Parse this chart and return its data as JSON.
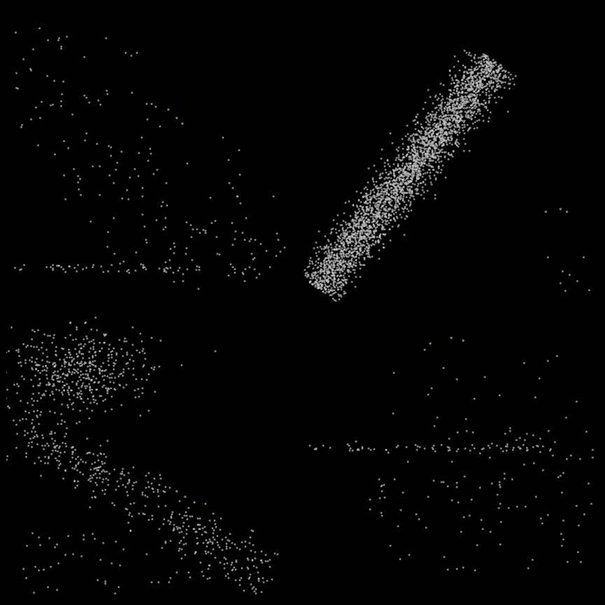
{
  "background_color": "#000000",
  "dot_color_main": "#c0c0c0",
  "dot_color_highlight": "#6b8e47",
  "dot_size_small": 4,
  "dot_size_large": 6,
  "dot_alpha": 0.75,
  "figsize": [
    8.64,
    8.64
  ],
  "dpi": 100
}
